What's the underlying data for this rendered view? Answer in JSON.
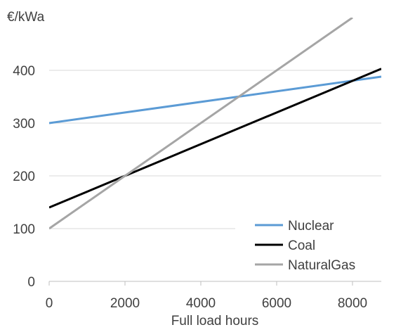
{
  "chart_data": {
    "type": "line",
    "title": "",
    "xlabel": "Full load hours",
    "ylabel": "€/kWa",
    "xlim": [
      0,
      8760
    ],
    "ylim": [
      0,
      500
    ],
    "xticks": [
      0,
      2000,
      4000,
      6000,
      8000
    ],
    "yticks": [
      0,
      100,
      200,
      300,
      400
    ],
    "grid": "horizontal",
    "legend_position": "bottom-right",
    "series": [
      {
        "name": "Nuclear",
        "color": "#5b9bd5",
        "x": [
          0,
          8760
        ],
        "y": [
          300,
          388
        ]
      },
      {
        "name": "Coal",
        "color": "#000000",
        "x": [
          0,
          8760
        ],
        "y": [
          140,
          403
        ]
      },
      {
        "name": "NaturalGas",
        "color": "#a5a5a5",
        "x": [
          0,
          8000
        ],
        "y": [
          100,
          500
        ]
      }
    ]
  }
}
